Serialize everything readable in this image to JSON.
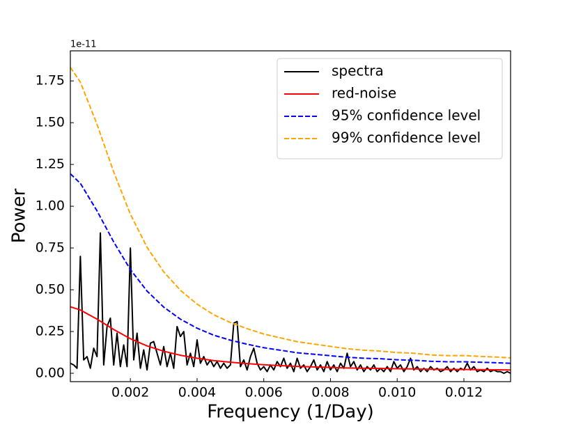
{
  "chart_data": {
    "type": "line",
    "x_label": "Frequency (1/Day)",
    "y_label": "Power",
    "y_offset_label": "1e-11",
    "xlim": [
      0.0002,
      0.0134
    ],
    "ylim": [
      -0.05,
      1.93
    ],
    "xticks": [
      0.002,
      0.004,
      0.006,
      0.008,
      {
        "value": 0.01,
        "label": "0.010"
      },
      0.012
    ],
    "yticks": [
      {
        "value": 0,
        "label": "0.00"
      },
      0.25,
      {
        "value": 0.5,
        "label": "0.50"
      },
      0.75,
      {
        "value": 1,
        "label": "1.00"
      },
      1.25,
      {
        "value": 1.5,
        "label": "1.50"
      },
      1.75
    ],
    "legend": "upper right",
    "series": [
      {
        "name": "spectra",
        "color": "#000000",
        "linestyle": "solid",
        "x": [
          0.0002,
          0.0003,
          0.0004,
          0.0005,
          0.0006,
          0.0007,
          0.0008,
          0.0009,
          0.001,
          0.0011,
          0.0012,
          0.0013,
          0.0014,
          0.0015,
          0.0016,
          0.0017,
          0.0018,
          0.0019,
          0.002,
          0.0021,
          0.0022,
          0.0023,
          0.0024,
          0.0025,
          0.0026,
          0.0027,
          0.0028,
          0.0029,
          0.003,
          0.0031,
          0.0032,
          0.0033,
          0.0034,
          0.0035,
          0.0036,
          0.0037,
          0.0038,
          0.0039,
          0.004,
          0.0041,
          0.0042,
          0.0043,
          0.0044,
          0.0045,
          0.0046,
          0.0047,
          0.0048,
          0.0049,
          0.005,
          0.0051,
          0.0052,
          0.0053,
          0.0054,
          0.0055,
          0.0056,
          0.0057,
          0.0058,
          0.0059,
          0.006,
          0.0061,
          0.0062,
          0.0063,
          0.0064,
          0.0065,
          0.0066,
          0.0067,
          0.0068,
          0.0069,
          0.007,
          0.0071,
          0.0072,
          0.0073,
          0.0074,
          0.0075,
          0.0076,
          0.0077,
          0.0078,
          0.0079,
          0.008,
          0.0081,
          0.0082,
          0.0083,
          0.0084,
          0.0085,
          0.0086,
          0.0087,
          0.0088,
          0.0089,
          0.009,
          0.0091,
          0.0092,
          0.0093,
          0.0094,
          0.0095,
          0.0096,
          0.0097,
          0.0098,
          0.0099,
          0.01,
          0.0101,
          0.0102,
          0.0103,
          0.0104,
          0.0105,
          0.0106,
          0.0107,
          0.0108,
          0.0109,
          0.011,
          0.0111,
          0.0112,
          0.0113,
          0.0114,
          0.0115,
          0.0116,
          0.0117,
          0.0118,
          0.0119,
          0.012,
          0.0121,
          0.0122,
          0.0123,
          0.0124,
          0.0125,
          0.0126,
          0.0127,
          0.0128,
          0.0129,
          0.013,
          0.0131,
          0.0132,
          0.0133,
          0.0134
        ],
        "values": [
          0.06,
          0.05,
          0.03,
          0.7,
          0.08,
          0.1,
          0.03,
          0.15,
          0.1,
          0.84,
          0.05,
          0.28,
          0.33,
          0.05,
          0.24,
          0.04,
          0.17,
          0.04,
          0.75,
          0.08,
          0.24,
          0.03,
          0.14,
          0.02,
          0.18,
          0.19,
          0.12,
          0.05,
          0.16,
          0.04,
          0.12,
          0.03,
          0.28,
          0.22,
          0.25,
          0.05,
          0.12,
          0.04,
          0.2,
          0.06,
          0.1,
          0.05,
          0.08,
          0.04,
          0.07,
          0.03,
          0.06,
          0.03,
          0.05,
          0.3,
          0.31,
          0.04,
          0.08,
          0.02,
          0.1,
          0.15,
          0.06,
          0.02,
          0.04,
          0.01,
          0.05,
          0.02,
          0.07,
          0.04,
          0.09,
          0.03,
          0.06,
          0.01,
          0.09,
          0.03,
          0.05,
          0.01,
          0.04,
          0.08,
          0.02,
          0.05,
          0.01,
          0.07,
          0.02,
          0.05,
          0.01,
          0.06,
          0.03,
          0.12,
          0.04,
          0.07,
          0.02,
          0.05,
          0.01,
          0.04,
          0.02,
          0.05,
          0.01,
          0.03,
          0.01,
          0.04,
          0.01,
          0.07,
          0.03,
          0.05,
          0.01,
          0.04,
          0.09,
          0.02,
          0.04,
          0.01,
          0.03,
          0.01,
          0.04,
          0.02,
          0.03,
          0.01,
          0.02,
          0.04,
          0.01,
          0.03,
          0.01,
          0.03,
          0.02,
          0.06,
          0.02,
          0.04,
          0.01,
          0.02,
          0.01,
          0.03,
          0.01,
          0.02,
          0.01,
          0.01,
          0.0,
          0.01,
          0.0
        ]
      },
      {
        "name": "red-noise",
        "color": "#ff0000",
        "linestyle": "solid",
        "x": [
          0.0002,
          0.0005,
          0.001,
          0.0015,
          0.002,
          0.0025,
          0.003,
          0.0035,
          0.004,
          0.0045,
          0.005,
          0.0055,
          0.006,
          0.0065,
          0.007,
          0.0075,
          0.008,
          0.0085,
          0.009,
          0.0095,
          0.01,
          0.0105,
          0.011,
          0.0115,
          0.012,
          0.0125,
          0.013,
          0.0134
        ],
        "values": [
          0.398,
          0.379,
          0.324,
          0.262,
          0.207,
          0.164,
          0.132,
          0.108,
          0.09,
          0.076,
          0.066,
          0.058,
          0.051,
          0.046,
          0.041,
          0.038,
          0.035,
          0.032,
          0.03,
          0.029,
          0.027,
          0.026,
          0.024,
          0.023,
          0.023,
          0.022,
          0.021,
          0.02
        ]
      },
      {
        "name": "95% confidence level",
        "color": "#0000ff",
        "linestyle": "dashed",
        "x": [
          0.0002,
          0.0005,
          0.001,
          0.0015,
          0.002,
          0.0025,
          0.003,
          0.0035,
          0.004,
          0.0045,
          0.005,
          0.0055,
          0.006,
          0.0065,
          0.007,
          0.0075,
          0.008,
          0.0085,
          0.009,
          0.0095,
          0.01,
          0.0105,
          0.011,
          0.0115,
          0.012,
          0.0125,
          0.013,
          0.0134
        ],
        "values": [
          1.194,
          1.137,
          0.972,
          0.786,
          0.621,
          0.492,
          0.396,
          0.324,
          0.27,
          0.228,
          0.198,
          0.174,
          0.153,
          0.138,
          0.123,
          0.114,
          0.105,
          0.096,
          0.09,
          0.087,
          0.081,
          0.078,
          0.072,
          0.069,
          0.069,
          0.066,
          0.063,
          0.06
        ]
      },
      {
        "name": "99% confidence level",
        "color": "#ffa500",
        "linestyle": "dashed",
        "x": [
          0.0002,
          0.0005,
          0.001,
          0.0015,
          0.002,
          0.0025,
          0.003,
          0.0035,
          0.004,
          0.0045,
          0.005,
          0.0055,
          0.006,
          0.0065,
          0.007,
          0.0075,
          0.008,
          0.0085,
          0.009,
          0.0095,
          0.01,
          0.0105,
          0.011,
          0.0115,
          0.012,
          0.0125,
          0.013,
          0.0134
        ],
        "values": [
          1.831,
          1.743,
          1.49,
          1.205,
          0.952,
          0.754,
          0.607,
          0.497,
          0.414,
          0.35,
          0.304,
          0.267,
          0.235,
          0.212,
          0.189,
          0.175,
          0.161,
          0.147,
          0.138,
          0.133,
          0.124,
          0.12,
          0.11,
          0.106,
          0.106,
          0.101,
          0.097,
          0.092
        ]
      }
    ]
  }
}
